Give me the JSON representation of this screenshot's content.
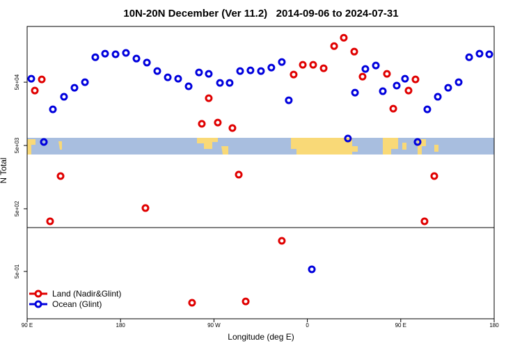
{
  "chart_data": [
    {
      "type": "scatter",
      "title": "10N-20N December (Ver 11.2)   2014-09-06 to 2024-07-31",
      "ylabel": "N Total",
      "log_y": true,
      "xlim": [
        90,
        540
      ],
      "ylim": [
        252,
        380000
      ],
      "yticks": [
        {
          "value": 500,
          "label": "5e+02"
        },
        {
          "value": 5000,
          "label": "5e+03"
        },
        {
          "value": 50000,
          "label": "5e+04"
        }
      ],
      "series": [
        {
          "color": "#e00000",
          "x": [
            97.4,
            104.1,
            112.1,
            122.2,
            204.0,
            258.3,
            265.0,
            273.7,
            287.8,
            293.9,
            346.8,
            355.6,
            365.6,
            375.7,
            385.8,
            395.1,
            405.2,
            413.2,
            436.7,
            442.8,
            457.5,
            464.2,
            472.9,
            482.3
          ],
          "values": [
            36900,
            55300,
            317,
            1640,
            513,
            11000,
            27900,
            11500,
            9420,
            1730,
            66100,
            94200,
            94200,
            83000,
            186000,
            252000,
            152000,
            61200,
            67700,
            19100,
            36900,
            55300,
            317,
            1640
          ]
        },
        {
          "color": "#0000dd",
          "x": [
            94.0,
            106.1,
            114.8,
            125.5,
            135.6,
            145.7,
            155.7,
            165.1,
            175.2,
            185.2,
            195.3,
            205.4,
            215.4,
            225.5,
            235.5,
            245.6,
            255.6,
            265.0,
            275.8,
            285.1,
            295.2,
            305.2,
            315.3,
            325.3,
            335.4,
            342.1,
            399.1,
            405.9,
            415.9,
            426.0,
            432.7,
            446.1,
            454.1,
            466.2,
            475.6,
            485.7,
            495.7,
            505.8,
            515.9,
            525.9,
            535.3
          ],
          "values": [
            56700,
            5680,
            18600,
            29400,
            40800,
            50000,
            124000,
            141000,
            138000,
            145000,
            118000,
            102000,
            75000,
            59700,
            56700,
            43000,
            71300,
            67700,
            48700,
            48700,
            75000,
            76900,
            75000,
            85100,
            104000,
            25900,
            6440,
            34200,
            80900,
            91800,
            36000,
            44100,
            56700,
            5680,
            18600,
            29400,
            40800,
            50000,
            124000,
            141000,
            138000
          ]
        }
      ]
    },
    {
      "type": "scatter",
      "xlabel": "Longitude (deg E)",
      "log_y": true,
      "legend": "lower left",
      "xlim": [
        90,
        540
      ],
      "xticks": [
        {
          "value": 90,
          "label": "90 E"
        },
        {
          "value": 180,
          "label": "180"
        },
        {
          "value": 270,
          "label": "90 W"
        },
        {
          "value": 360,
          "label": "0"
        },
        {
          "value": 450,
          "label": "90 E"
        },
        {
          "value": 540,
          "label": "180"
        }
      ],
      "ylim": [
        0.0895,
        2.46
      ],
      "yticks": [
        {
          "value": 0.5,
          "label": "5e-01"
        }
      ],
      "series": [
        {
          "name": "Land (Nadir&Glint)",
          "color": "#e00000",
          "x": [
            248.9,
            300.6,
            335.4
          ],
          "values": [
            0.16,
            0.168,
            1.52
          ]
        },
        {
          "name": "Ocean (Glint)",
          "color": "#0000dd",
          "x": [
            364.3
          ],
          "values": [
            0.54
          ]
        }
      ]
    }
  ]
}
